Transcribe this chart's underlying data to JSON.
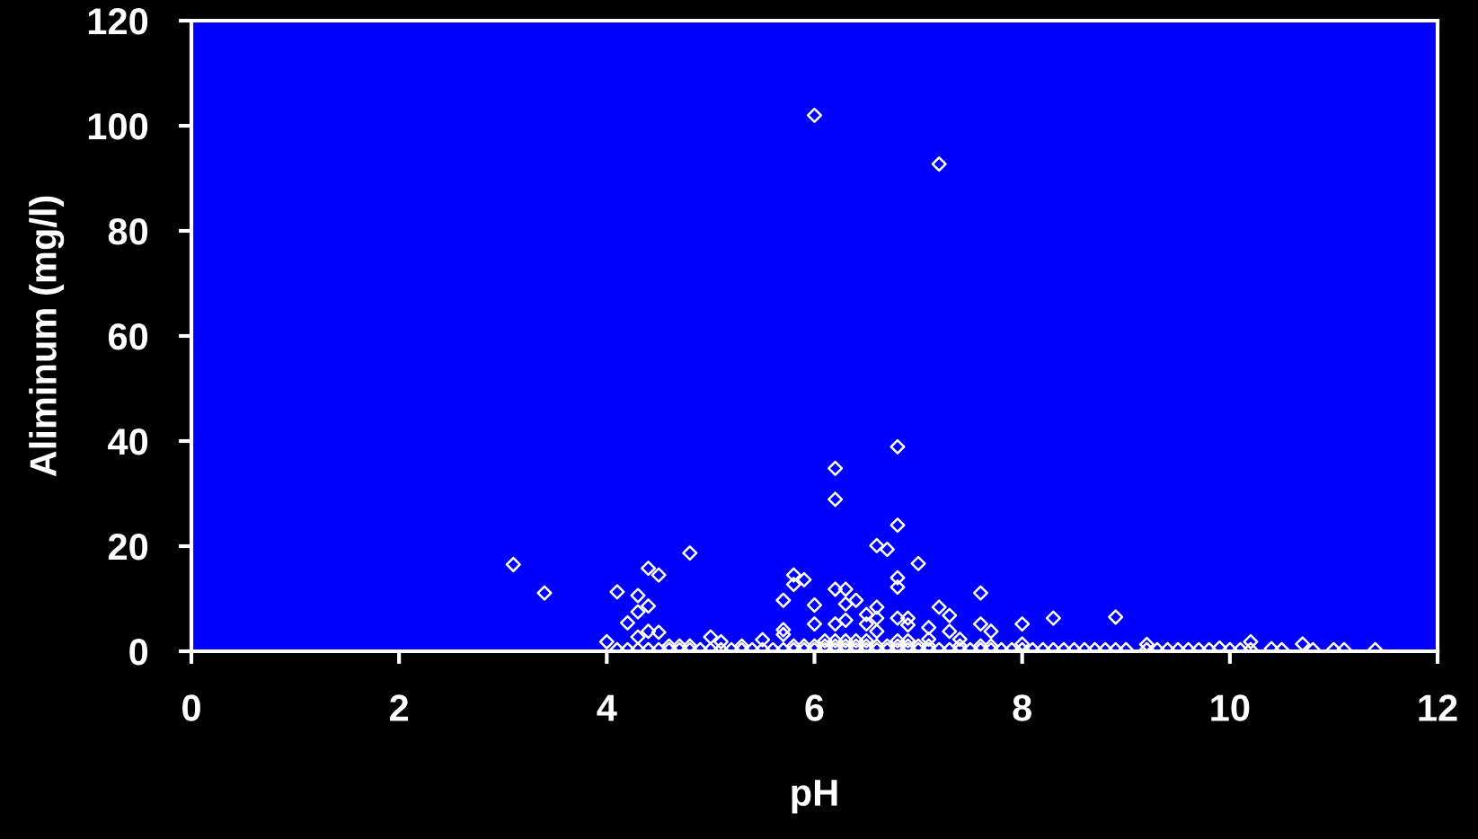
{
  "chart_data": {
    "type": "scatter",
    "xlabel": "pH",
    "ylabel": "Aliminum (mg/l)",
    "xlim": [
      0,
      12
    ],
    "ylim": [
      0,
      120
    ],
    "xticks": [
      0,
      2,
      4,
      6,
      8,
      10,
      12
    ],
    "yticks": [
      0,
      20,
      40,
      60,
      80,
      100,
      120
    ],
    "grid": false,
    "legend": false,
    "marker": "diamond",
    "series": [
      {
        "color": "#ffffff",
        "x": [
          3.1,
          3.4,
          6.0,
          7.2,
          6.8,
          6.2,
          6.2,
          6.8,
          6.6,
          6.7,
          4.8,
          7.0,
          4.4,
          4.5,
          5.8,
          5.9,
          5.8,
          6.8,
          6.8,
          6.2,
          6.3,
          4.1,
          7.6,
          6.4,
          5.7,
          4.3,
          6.3,
          6.0,
          4.4,
          6.6,
          7.2,
          4.3,
          6.5,
          7.3,
          6.6,
          6.8,
          6.9,
          8.3,
          8.9,
          6.3,
          6.2,
          6.0,
          4.2,
          6.5,
          7.6,
          8.0,
          6.9,
          7.1,
          5.7,
          7.7,
          4.4,
          4.5,
          7.3,
          5.7,
          6.6,
          4.3,
          5.0,
          5.5,
          7.4,
          7.1,
          4.0,
          5.1,
          10.2,
          10.7,
          9.2,
          8.0,
          4.1,
          4.2,
          4.3,
          4.4,
          4.5,
          4.6,
          4.7,
          4.8,
          4.9,
          5.0,
          5.1,
          5.2,
          5.3,
          5.4,
          5.5,
          5.6,
          5.7,
          5.8,
          5.9,
          6.0,
          6.1,
          6.2,
          6.3,
          6.4,
          6.5,
          6.6,
          6.7,
          6.8,
          6.9,
          7.0,
          7.1,
          7.2,
          7.3,
          7.4,
          7.5,
          7.6,
          7.7,
          7.8,
          7.9,
          8.0,
          8.1,
          8.2,
          8.3,
          8.4,
          8.5,
          8.6,
          8.7,
          8.8,
          8.9,
          9.0,
          9.2,
          9.3,
          9.4,
          9.5,
          9.6,
          9.7,
          9.8,
          9.9,
          10.0,
          10.1,
          10.2,
          10.4,
          10.5,
          10.8,
          11.0,
          11.1,
          11.4,
          4.6,
          4.7,
          4.8,
          5.3,
          5.8,
          5.9,
          6.0,
          6.1,
          6.2,
          6.3,
          6.4,
          6.5,
          6.6,
          6.7,
          6.8,
          6.9,
          7.0,
          7.1,
          7.4,
          7.6,
          7.7,
          6.1,
          6.2,
          6.3,
          6.4,
          6.5,
          6.8,
          6.9
        ],
        "values": [
          16.5,
          11.1,
          102,
          92.7,
          38.9,
          34.8,
          28.9,
          24.0,
          20.1,
          19.4,
          18.7,
          16.7,
          15.8,
          14.5,
          14.5,
          13.6,
          12.7,
          14.0,
          12.2,
          11.8,
          11.8,
          11.3,
          11.1,
          9.7,
          9.7,
          10.6,
          9.0,
          8.8,
          8.6,
          8.4,
          8.4,
          7.5,
          7.0,
          6.8,
          6.3,
          6.3,
          6.3,
          6.3,
          6.5,
          5.9,
          5.2,
          5.2,
          5.4,
          5.2,
          5.2,
          5.2,
          5.0,
          4.5,
          4.1,
          3.8,
          3.8,
          3.6,
          3.8,
          3.2,
          3.8,
          2.7,
          2.7,
          2.2,
          2.3,
          2.3,
          1.8,
          1.8,
          1.8,
          1.4,
          1.3,
          1.4,
          0.3,
          0.3,
          0.3,
          0.3,
          0.3,
          0.3,
          0.3,
          0.3,
          0.3,
          0.3,
          0.3,
          0.3,
          0.3,
          0.3,
          0.3,
          0.3,
          0.3,
          0.3,
          0.3,
          0.3,
          0.3,
          0.3,
          0.3,
          0.3,
          0.3,
          0.3,
          0.3,
          0.3,
          0.3,
          0.3,
          0.3,
          0.3,
          0.3,
          0.3,
          0.3,
          0.3,
          0.3,
          0.3,
          0.3,
          0.3,
          0.3,
          0.3,
          0.3,
          0.3,
          0.3,
          0.3,
          0.3,
          0.3,
          0.3,
          0.3,
          0.3,
          0.3,
          0.3,
          0.3,
          0.3,
          0.3,
          0.3,
          0.6,
          0.3,
          0.3,
          0.3,
          0.5,
          0.3,
          0.3,
          0.3,
          0.3,
          0.3,
          1.0,
          1.0,
          1.0,
          1.0,
          1.0,
          1.0,
          1.0,
          1.0,
          1.0,
          1.0,
          1.0,
          1.0,
          1.0,
          1.0,
          1.0,
          1.0,
          1.0,
          1.0,
          1.0,
          1.0,
          1.0,
          2.0,
          2.0,
          2.0,
          2.0,
          2.0,
          2.0,
          2.0
        ]
      }
    ]
  }
}
